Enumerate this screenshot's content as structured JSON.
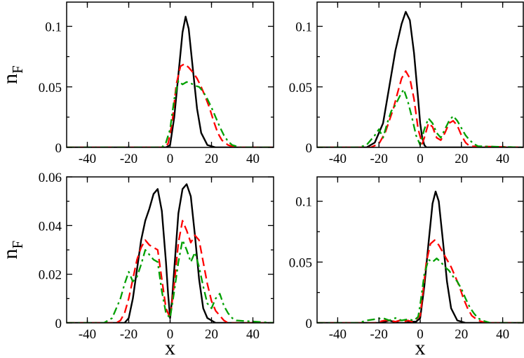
{
  "chart_data": [
    {
      "type": "line",
      "panel": "top-left",
      "xlabel": "",
      "ylabel": "n",
      "ylabel_sub": "F",
      "xlim": [
        -50,
        50
      ],
      "ylim": [
        0,
        0.12
      ],
      "xticks": [
        -40,
        -20,
        0,
        20,
        40
      ],
      "xtick_labels": [
        "-40",
        "-20",
        "0",
        "20",
        "40"
      ],
      "yticks": [
        0,
        0.05,
        0.1
      ],
      "ytick_labels": [
        "0",
        "0.05",
        "0.1"
      ],
      "grid": false,
      "series": [
        {
          "color": "#000000",
          "style": "solid",
          "x": [
            -50,
            -2,
            0,
            2,
            4,
            6,
            7.5,
            9,
            11,
            13,
            15,
            18,
            22,
            50
          ],
          "y": [
            0,
            0,
            0.002,
            0.025,
            0.06,
            0.095,
            0.108,
            0.098,
            0.065,
            0.032,
            0.012,
            0.002,
            0,
            0
          ]
        },
        {
          "color": "#ff0000",
          "style": "dashed",
          "x": [
            -50,
            -3,
            -1,
            1,
            3,
            5,
            7,
            9,
            11,
            13,
            15,
            17,
            19,
            21,
            23,
            25,
            28,
            32,
            50
          ],
          "y": [
            0,
            0,
            0.003,
            0.02,
            0.052,
            0.067,
            0.069,
            0.066,
            0.062,
            0.057,
            0.05,
            0.042,
            0.033,
            0.022,
            0.012,
            0.006,
            0.002,
            0,
            0
          ]
        },
        {
          "color": "#00a000",
          "style": "dashdot",
          "x": [
            -50,
            -4,
            -2,
            0,
            2,
            4,
            6,
            8,
            10,
            12,
            14,
            16,
            18,
            20,
            22,
            24,
            26,
            28,
            30,
            34,
            50
          ],
          "y": [
            0,
            0,
            0.004,
            0.015,
            0.04,
            0.055,
            0.052,
            0.054,
            0.053,
            0.051,
            0.05,
            0.046,
            0.04,
            0.033,
            0.025,
            0.017,
            0.01,
            0.005,
            0.002,
            0,
            0
          ]
        }
      ]
    },
    {
      "type": "line",
      "panel": "top-right",
      "xlabel": "",
      "ylabel": "",
      "xlim": [
        -50,
        50
      ],
      "ylim": [
        0,
        0.12
      ],
      "xticks": [
        -40,
        -20,
        0,
        20,
        40
      ],
      "xtick_labels": [
        "-40",
        "-20",
        "0",
        "20",
        "40"
      ],
      "yticks": [
        0,
        0.05,
        0.1
      ],
      "ytick_labels": [
        "0",
        "0.05",
        "0.1"
      ],
      "grid": false,
      "series": [
        {
          "color": "#000000",
          "style": "solid",
          "x": [
            -50,
            -26,
            -22,
            -18,
            -15,
            -12,
            -9,
            -7,
            -5,
            -3,
            -1,
            0,
            1,
            2,
            3,
            5,
            50
          ],
          "y": [
            0,
            0,
            0.004,
            0.02,
            0.05,
            0.08,
            0.102,
            0.112,
            0.105,
            0.078,
            0.04,
            0.02,
            0.008,
            0.002,
            0,
            0,
            0
          ]
        },
        {
          "color": "#ff0000",
          "style": "dashed",
          "x": [
            -50,
            -24,
            -20,
            -17,
            -15,
            -13,
            -11,
            -9,
            -7,
            -5,
            -3,
            -1,
            1,
            2,
            4,
            6,
            8,
            10,
            12,
            14,
            16,
            18,
            20,
            22,
            24,
            50
          ],
          "y": [
            0,
            0,
            0.003,
            0.012,
            0.022,
            0.032,
            0.045,
            0.057,
            0.063,
            0.057,
            0.04,
            0.015,
            0.003,
            0.008,
            0.02,
            0.017,
            0.008,
            0.006,
            0.012,
            0.02,
            0.022,
            0.018,
            0.01,
            0.004,
            0.001,
            0
          ]
        },
        {
          "color": "#00a000",
          "style": "dashdot",
          "x": [
            -50,
            -30,
            -26,
            -22,
            -20,
            -18,
            -16,
            -14,
            -12,
            -10,
            -8,
            -6,
            -4,
            -2,
            0,
            2,
            4,
            6,
            8,
            10,
            12,
            14,
            16,
            18,
            20,
            22,
            24,
            26,
            28,
            50
          ],
          "y": [
            0,
            0,
            0.002,
            0.01,
            0.015,
            0.008,
            0.02,
            0.03,
            0.035,
            0.042,
            0.048,
            0.038,
            0.025,
            0.01,
            0.002,
            0.015,
            0.024,
            0.02,
            0.012,
            0.008,
            0.015,
            0.022,
            0.026,
            0.022,
            0.016,
            0.01,
            0.006,
            0.003,
            0.001,
            0
          ]
        }
      ]
    },
    {
      "type": "line",
      "panel": "bottom-left",
      "xlabel": "x",
      "ylabel": "n",
      "ylabel_sub": "F",
      "xlim": [
        -50,
        50
      ],
      "ylim": [
        0,
        0.06
      ],
      "xticks": [
        -40,
        -20,
        0,
        20,
        40
      ],
      "xtick_labels": [
        "-40",
        "-20",
        "0",
        "20",
        "40"
      ],
      "yticks": [
        0,
        0.02,
        0.04,
        0.06
      ],
      "ytick_labels": [
        "0",
        "0.02",
        "0.04",
        "0.06"
      ],
      "grid": false,
      "series": [
        {
          "color": "#000000",
          "style": "solid",
          "x": [
            -50,
            -22,
            -20,
            -18,
            -16,
            -14,
            -12,
            -10,
            -8,
            -6,
            -4,
            -2,
            -1,
            0,
            1,
            2,
            4,
            6,
            8,
            10,
            12,
            14,
            16,
            18,
            20,
            22,
            50
          ],
          "y": [
            0,
            0,
            0.002,
            0.01,
            0.022,
            0.034,
            0.042,
            0.047,
            0.053,
            0.055,
            0.046,
            0.025,
            0.012,
            0.002,
            0.01,
            0.022,
            0.045,
            0.055,
            0.057,
            0.052,
            0.036,
            0.018,
            0.006,
            0.002,
            0.001,
            0,
            0
          ]
        },
        {
          "color": "#ff0000",
          "style": "dashed",
          "x": [
            -50,
            -26,
            -24,
            -22,
            -20,
            -18,
            -16,
            -14,
            -12,
            -10,
            -8,
            -6,
            -4,
            -2,
            0,
            2,
            4,
            6,
            8,
            10,
            12,
            14,
            16,
            18,
            20,
            22,
            24,
            26,
            28,
            50
          ],
          "y": [
            0,
            0,
            0.001,
            0.004,
            0.01,
            0.018,
            0.026,
            0.031,
            0.034,
            0.032,
            0.031,
            0.03,
            0.018,
            0.006,
            0.002,
            0.016,
            0.033,
            0.042,
            0.038,
            0.033,
            0.036,
            0.034,
            0.025,
            0.016,
            0.009,
            0.005,
            0.003,
            0.001,
            0,
            0
          ]
        },
        {
          "color": "#00a000",
          "style": "dashdot",
          "x": [
            -50,
            -32,
            -28,
            -26,
            -24,
            -22,
            -20,
            -18,
            -16,
            -14,
            -12,
            -10,
            -8,
            -6,
            -4,
            -2,
            0,
            2,
            4,
            6,
            8,
            10,
            12,
            14,
            16,
            18,
            20,
            22,
            24,
            26,
            28,
            30,
            32,
            50
          ],
          "y": [
            0,
            0,
            0.002,
            0.006,
            0.01,
            0.016,
            0.021,
            0.017,
            0.019,
            0.024,
            0.03,
            0.028,
            0.026,
            0.025,
            0.013,
            0.004,
            0.002,
            0.013,
            0.025,
            0.034,
            0.03,
            0.025,
            0.029,
            0.023,
            0.015,
            0.008,
            0.006,
            0.01,
            0.012,
            0.007,
            0.004,
            0.002,
            0.001,
            0
          ]
        }
      ]
    },
    {
      "type": "line",
      "panel": "bottom-right",
      "xlabel": "x",
      "ylabel": "",
      "xlim": [
        -50,
        50
      ],
      "ylim": [
        0,
        0.12
      ],
      "xticks": [
        -40,
        -20,
        0,
        20,
        40
      ],
      "xtick_labels": [
        "-40",
        "-20",
        "0",
        "20",
        "40"
      ],
      "yticks": [
        0,
        0.05,
        0.1
      ],
      "ytick_labels": [
        "0",
        "0.05",
        "0.1"
      ],
      "grid": false,
      "series": [
        {
          "color": "#000000",
          "style": "solid",
          "x": [
            -50,
            -20,
            -17,
            -15,
            -13,
            -10,
            -7,
            -5,
            -2,
            0,
            2,
            4,
            6,
            7.5,
            9,
            11,
            13,
            15,
            18,
            22,
            50
          ],
          "y": [
            0,
            0,
            0.001,
            0.002,
            0.001,
            0,
            0,
            0.001,
            0.001,
            0.004,
            0.03,
            0.065,
            0.098,
            0.108,
            0.1,
            0.068,
            0.034,
            0.012,
            0.002,
            0,
            0
          ]
        },
        {
          "color": "#ff0000",
          "style": "dashed",
          "x": [
            -50,
            -22,
            -20,
            -17,
            -15,
            -12,
            -10,
            -8,
            -6,
            -4,
            -2,
            0,
            1,
            3,
            5,
            7,
            9,
            11,
            13,
            15,
            17,
            19,
            21,
            23,
            25,
            28,
            32,
            50
          ],
          "y": [
            0,
            0,
            0.001,
            0.002,
            0.002,
            0.001,
            0.002,
            0.001,
            0.002,
            0.001,
            0.003,
            0.006,
            0.02,
            0.05,
            0.065,
            0.068,
            0.064,
            0.058,
            0.052,
            0.046,
            0.038,
            0.03,
            0.02,
            0.012,
            0.006,
            0.002,
            0,
            0
          ]
        },
        {
          "color": "#00a000",
          "style": "dashdot",
          "x": [
            -50,
            -30,
            -26,
            -22,
            -18,
            -15,
            -12,
            -9,
            -6,
            -3,
            -1,
            0,
            2,
            4,
            6,
            8,
            10,
            12,
            14,
            16,
            18,
            20,
            22,
            24,
            26,
            28,
            30,
            34,
            50
          ],
          "y": [
            0,
            0,
            0.002,
            0.003,
            0.004,
            0.002,
            0.004,
            0.002,
            0.003,
            0.002,
            0.005,
            0.015,
            0.04,
            0.052,
            0.05,
            0.053,
            0.05,
            0.046,
            0.043,
            0.038,
            0.034,
            0.028,
            0.02,
            0.013,
            0.008,
            0.004,
            0.002,
            0,
            0
          ]
        }
      ]
    }
  ]
}
